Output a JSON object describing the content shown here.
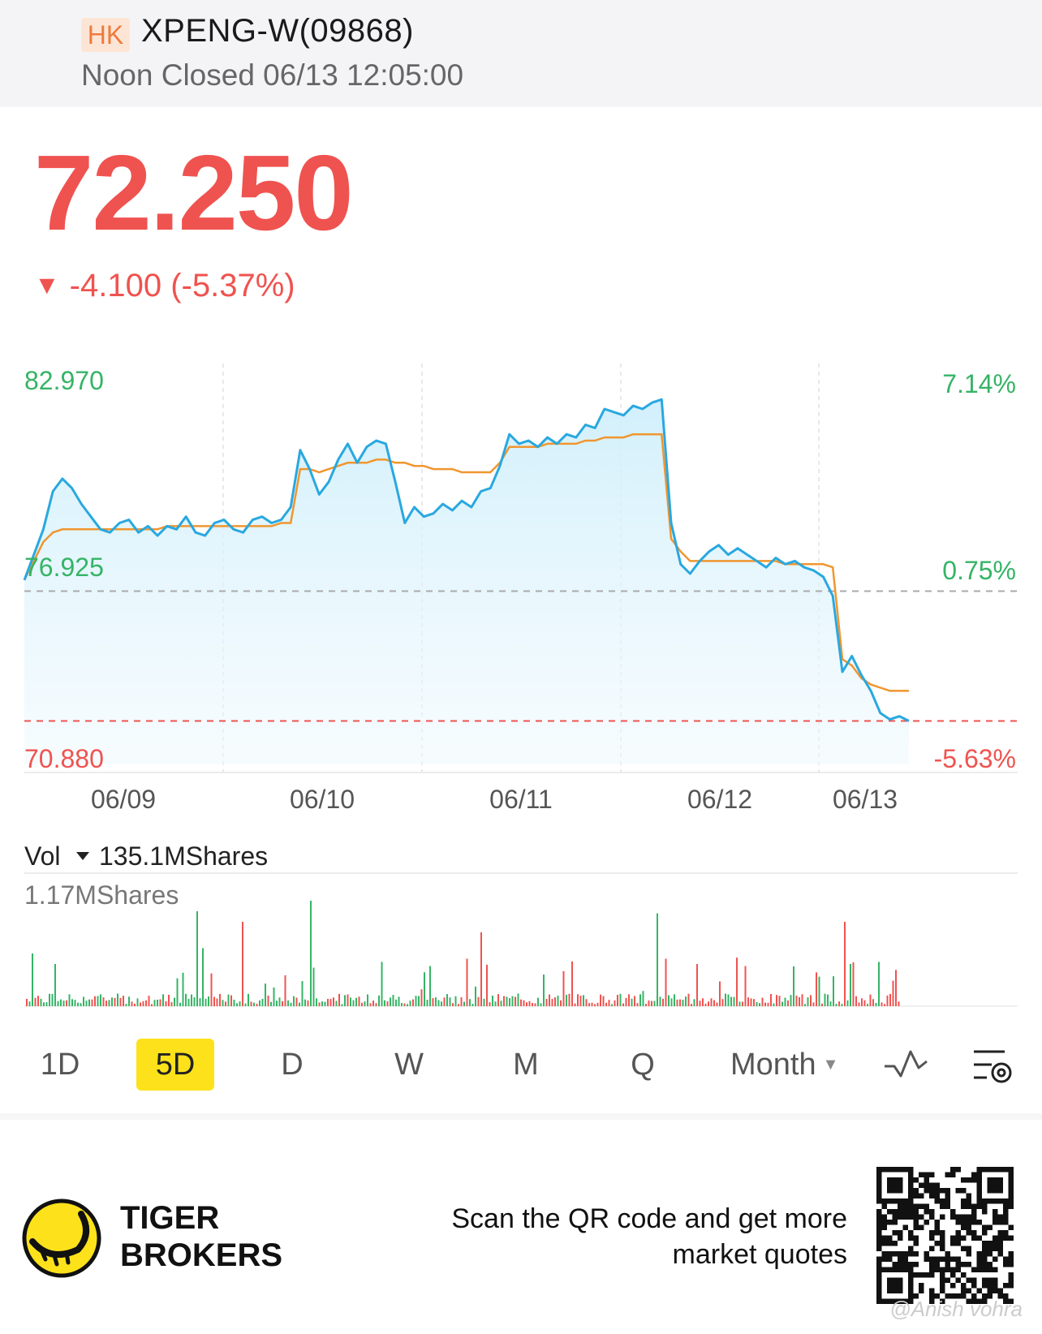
{
  "header": {
    "market_badge": "HK",
    "ticker": "XPENG-W(09868)",
    "status": "Noon Closed 06/13 12:05:00"
  },
  "quote": {
    "price": "72.250",
    "change_arrow": "▼",
    "change": "-4.100 (-5.37%)"
  },
  "chart_data": {
    "type": "line",
    "y_left_labels": [
      "82.970",
      "76.925",
      "70.880"
    ],
    "y_right_labels": [
      "7.14%",
      "0.75%",
      "-5.63%"
    ],
    "x_labels": [
      "06/09",
      "06/10",
      "06/11",
      "06/12",
      "06/13"
    ],
    "ylim": [
      70.88,
      82.97
    ],
    "prev_close": 76.35,
    "current": 72.25,
    "series": [
      {
        "values": [
          76.7,
          77.5,
          78.3,
          79.5,
          79.9,
          79.6,
          79.1,
          78.7,
          78.3,
          78.2,
          78.5,
          78.6,
          78.2,
          78.4,
          78.1,
          78.4,
          78.3,
          78.7,
          78.2,
          78.1,
          78.5,
          78.6,
          78.3,
          78.2,
          78.6,
          78.7,
          78.5,
          78.6,
          79.0,
          80.8,
          80.2,
          79.4,
          79.8,
          80.5,
          81.0,
          80.4,
          80.9,
          81.1,
          81.0,
          79.8,
          78.5,
          79.0,
          78.7,
          78.8,
          79.1,
          78.9,
          79.2,
          79.0,
          79.5,
          79.6,
          80.3,
          81.3,
          81.0,
          81.1,
          80.9,
          81.2,
          81.0,
          81.3,
          81.2,
          81.6,
          81.5,
          82.1,
          82.0,
          81.9,
          82.2,
          82.1,
          82.3,
          82.4,
          78.5,
          77.2,
          76.9,
          77.3,
          77.6,
          77.8,
          77.5,
          77.7,
          77.5,
          77.3,
          77.1,
          77.4,
          77.2,
          77.3,
          77.1,
          77.0,
          76.8,
          76.2,
          73.8,
          74.3,
          73.7,
          73.2,
          72.5,
          72.3,
          72.4,
          72.25
        ],
        "vwap": [
          76.7,
          77.3,
          77.9,
          78.2,
          78.3,
          78.3,
          78.3,
          78.3,
          78.3,
          78.3,
          78.3,
          78.3,
          78.3,
          78.3,
          78.3,
          78.4,
          78.4,
          78.4,
          78.4,
          78.4,
          78.4,
          78.4,
          78.4,
          78.4,
          78.4,
          78.4,
          78.4,
          78.5,
          78.5,
          80.2,
          80.2,
          80.1,
          80.2,
          80.3,
          80.4,
          80.4,
          80.4,
          80.5,
          80.5,
          80.4,
          80.4,
          80.3,
          80.3,
          80.2,
          80.2,
          80.2,
          80.1,
          80.1,
          80.1,
          80.1,
          80.4,
          80.9,
          80.9,
          80.9,
          80.9,
          81.0,
          81.0,
          81.0,
          81.0,
          81.1,
          81.1,
          81.2,
          81.2,
          81.2,
          81.3,
          81.3,
          81.3,
          81.3,
          78.0,
          77.6,
          77.3,
          77.3,
          77.3,
          77.3,
          77.3,
          77.3,
          77.3,
          77.3,
          77.3,
          77.3,
          77.2,
          77.2,
          77.2,
          77.2,
          77.2,
          77.1,
          74.2,
          74.0,
          73.6,
          73.4,
          73.3,
          73.2,
          73.2,
          73.2
        ]
      }
    ],
    "grid": true
  },
  "volume": {
    "label": "Vol",
    "total": "135.1MShares",
    "max_label": "1.17MShares"
  },
  "tabs": [
    "1D",
    "5D",
    "D",
    "W",
    "M",
    "Q"
  ],
  "month_tab": "Month",
  "footer": {
    "brand_line1": "TIGER",
    "brand_line2": "BROKERS",
    "promo_line1": "Scan the QR code and get more",
    "promo_line2": "market quotes",
    "watermark": "@Anish vohra"
  },
  "colors": {
    "up": "#35b466",
    "down": "#ef5350",
    "line": "#29a8e0",
    "vwap": "#f0962f",
    "active_tab": "#fde21b"
  }
}
